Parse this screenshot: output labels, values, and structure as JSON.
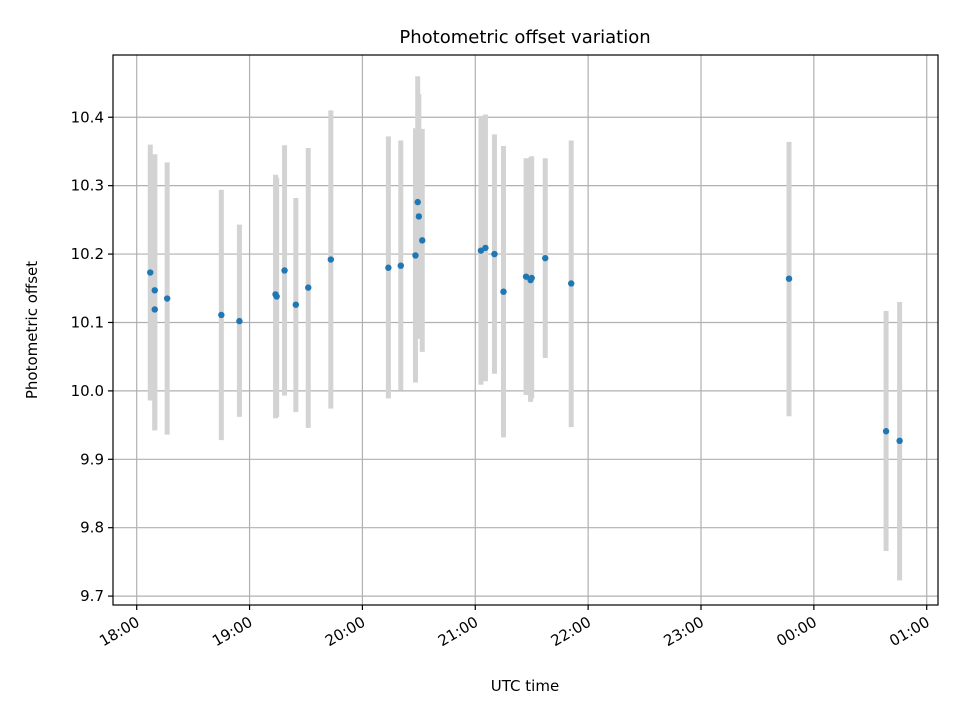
{
  "chart_data": {
    "type": "scatter",
    "title": "Photometric offset variation",
    "xlabel": "UTC time",
    "ylabel": "Photometric offset",
    "x_ticks": [
      {
        "value": 18.0,
        "label": "18:00"
      },
      {
        "value": 19.0,
        "label": "19:00"
      },
      {
        "value": 20.0,
        "label": "20:00"
      },
      {
        "value": 21.0,
        "label": "21:00"
      },
      {
        "value": 22.0,
        "label": "22:00"
      },
      {
        "value": 23.0,
        "label": "23:00"
      },
      {
        "value": 24.0,
        "label": "00:00"
      },
      {
        "value": 25.0,
        "label": "01:00"
      }
    ],
    "y_ticks": [
      {
        "value": 9.7,
        "label": "9.7"
      },
      {
        "value": 9.8,
        "label": "9.8"
      },
      {
        "value": 9.9,
        "label": "9.9"
      },
      {
        "value": 10.0,
        "label": "10.0"
      },
      {
        "value": 10.1,
        "label": "10.1"
      },
      {
        "value": 10.2,
        "label": "10.2"
      },
      {
        "value": 10.3,
        "label": "10.3"
      },
      {
        "value": 10.4,
        "label": "10.4"
      }
    ],
    "xlim": [
      17.79,
      25.1
    ],
    "ylim": [
      9.687,
      10.491
    ],
    "grid": true,
    "point_color": "#1f77b4",
    "errorbar_color": "#d3d3d3",
    "points": [
      {
        "x": 18.12,
        "y": 10.173,
        "lo": 9.986,
        "hi": 10.36
      },
      {
        "x": 18.16,
        "y": 10.147,
        "lo": 9.942,
        "hi": 10.346
      },
      {
        "x": 18.16,
        "y": 10.119,
        "lo": 9.946,
        "hi": 10.344
      },
      {
        "x": 18.27,
        "y": 10.135,
        "lo": 9.936,
        "hi": 10.334
      },
      {
        "x": 18.75,
        "y": 10.111,
        "lo": 9.928,
        "hi": 10.294
      },
      {
        "x": 18.91,
        "y": 10.102,
        "lo": 9.962,
        "hi": 10.243
      },
      {
        "x": 19.23,
        "y": 10.141,
        "lo": 9.96,
        "hi": 10.316
      },
      {
        "x": 19.24,
        "y": 10.138,
        "lo": 9.962,
        "hi": 10.312
      },
      {
        "x": 19.31,
        "y": 10.176,
        "lo": 9.993,
        "hi": 10.359
      },
      {
        "x": 19.41,
        "y": 10.126,
        "lo": 9.969,
        "hi": 10.282
      },
      {
        "x": 19.52,
        "y": 10.151,
        "lo": 9.946,
        "hi": 10.355
      },
      {
        "x": 19.72,
        "y": 10.192,
        "lo": 9.974,
        "hi": 10.41
      },
      {
        "x": 20.23,
        "y": 10.18,
        "lo": 9.989,
        "hi": 10.372
      },
      {
        "x": 20.34,
        "y": 10.183,
        "lo": 10.001,
        "hi": 10.366
      },
      {
        "x": 20.47,
        "y": 10.198,
        "lo": 10.012,
        "hi": 10.384
      },
      {
        "x": 20.49,
        "y": 10.276,
        "lo": 10.091,
        "hi": 10.46
      },
      {
        "x": 20.5,
        "y": 10.255,
        "lo": 10.076,
        "hi": 10.434
      },
      {
        "x": 20.53,
        "y": 10.22,
        "lo": 10.057,
        "hi": 10.383
      },
      {
        "x": 21.05,
        "y": 10.205,
        "lo": 10.009,
        "hi": 10.402
      },
      {
        "x": 21.09,
        "y": 10.209,
        "lo": 10.014,
        "hi": 10.404
      },
      {
        "x": 21.17,
        "y": 10.2,
        "lo": 10.025,
        "hi": 10.375
      },
      {
        "x": 21.25,
        "y": 10.145,
        "lo": 9.932,
        "hi": 10.358
      },
      {
        "x": 21.45,
        "y": 10.167,
        "lo": 9.994,
        "hi": 10.34
      },
      {
        "x": 21.49,
        "y": 10.162,
        "lo": 9.984,
        "hi": 10.341
      },
      {
        "x": 21.5,
        "y": 10.165,
        "lo": 9.989,
        "hi": 10.343
      },
      {
        "x": 21.62,
        "y": 10.194,
        "lo": 10.048,
        "hi": 10.34
      },
      {
        "x": 21.85,
        "y": 10.157,
        "lo": 9.947,
        "hi": 10.366
      },
      {
        "x": 23.78,
        "y": 10.164,
        "lo": 9.963,
        "hi": 10.364
      },
      {
        "x": 24.64,
        "y": 9.941,
        "lo": 9.766,
        "hi": 10.117
      },
      {
        "x": 24.76,
        "y": 9.927,
        "lo": 9.723,
        "hi": 10.13
      }
    ]
  }
}
